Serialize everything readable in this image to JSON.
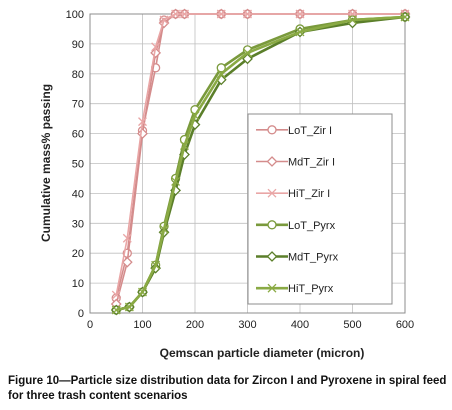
{
  "caption": "Figure 10—Particle size distribution data for Zircon I and Pyroxene in spiral feed for three trash content scenarios",
  "chart_data": {
    "type": "line",
    "xlabel": "Qemscan particle diameter (micron)",
    "ylabel": "Cumulative mass% passing",
    "xlim": [
      0,
      600
    ],
    "ylim": [
      0,
      100
    ],
    "xticks": [
      0,
      100,
      200,
      300,
      400,
      500,
      600
    ],
    "yticks": [
      0,
      10,
      20,
      30,
      40,
      50,
      60,
      70,
      80,
      90,
      100
    ],
    "grid": true,
    "legend_position": "right",
    "series": [
      {
        "name": "LoT_Zir I",
        "color": "#d48c8c",
        "marker": "circle",
        "x": [
          50,
          71,
          100,
          125,
          141,
          163,
          180,
          250,
          300,
          400,
          500,
          600
        ],
        "y": [
          5,
          20,
          61,
          82,
          98,
          100,
          100,
          100,
          100,
          100,
          100,
          100
        ]
      },
      {
        "name": "MdT_Zir I",
        "color": "#d48c8c",
        "marker": "diamond",
        "x": [
          50,
          71,
          100,
          125,
          141,
          163,
          180,
          250,
          300,
          400,
          500,
          600
        ],
        "y": [
          3,
          17,
          60,
          87,
          97,
          100,
          100,
          100,
          100,
          100,
          100,
          100
        ]
      },
      {
        "name": "HiT_Zir I",
        "color": "#e9a6a6",
        "marker": "x",
        "x": [
          50,
          71,
          100,
          125,
          141,
          163,
          180,
          250,
          300,
          400,
          500,
          600
        ],
        "y": [
          6,
          25,
          64,
          89,
          98,
          100,
          100,
          100,
          100,
          100,
          100,
          100
        ]
      },
      {
        "name": "LoT_Pyrx",
        "color": "#7a9a3c",
        "marker": "circle",
        "x": [
          50,
          75,
          100,
          125,
          141,
          163,
          180,
          200,
          250,
          300,
          400,
          500,
          600
        ],
        "y": [
          1,
          2,
          7,
          16,
          29,
          45,
          58,
          68,
          82,
          88,
          95,
          98,
          99
        ]
      },
      {
        "name": "MdT_Pyrx",
        "color": "#5b7f2a",
        "marker": "diamond",
        "x": [
          50,
          75,
          100,
          125,
          141,
          163,
          180,
          200,
          250,
          300,
          400,
          500,
          600
        ],
        "y": [
          1,
          2,
          7,
          15,
          27,
          41,
          53,
          63,
          78,
          85,
          94,
          97,
          99
        ]
      },
      {
        "name": "HiT_Pyrx",
        "color": "#8aaa44",
        "marker": "x",
        "x": [
          50,
          75,
          100,
          125,
          141,
          163,
          180,
          200,
          250,
          300,
          400,
          500,
          600
        ],
        "y": [
          1,
          2,
          7,
          16,
          28,
          44,
          56,
          66,
          80,
          87,
          94,
          98,
          99
        ]
      }
    ]
  }
}
